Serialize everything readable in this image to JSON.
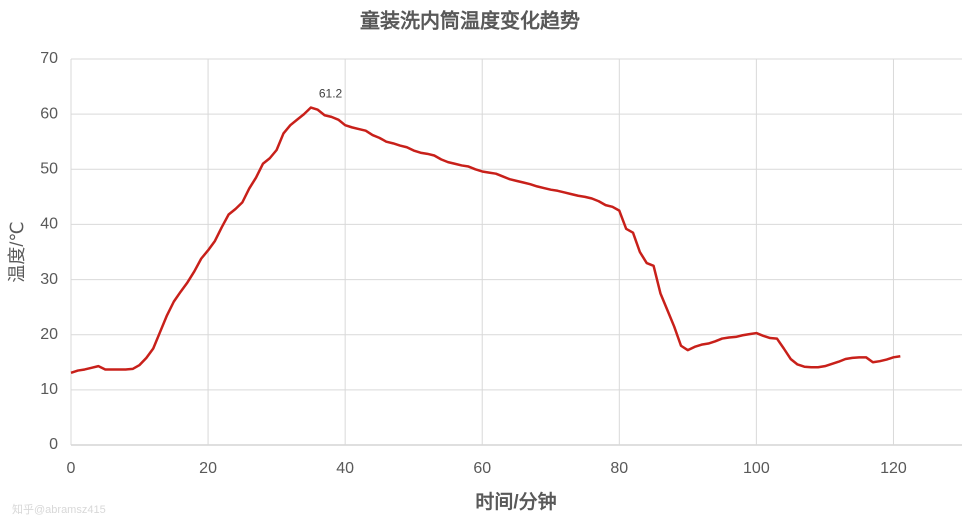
{
  "chart_data": {
    "type": "line",
    "title": "童装洗内筒温度变化趋势",
    "x_label": "时间/分钟",
    "y_label": "温度/℃",
    "watermark": "知乎@abramsz415",
    "x": [
      0,
      1,
      2,
      3,
      4,
      5,
      6,
      7,
      8,
      9,
      10,
      11,
      12,
      13,
      14,
      15,
      16,
      17,
      18,
      19,
      20,
      21,
      22,
      23,
      24,
      25,
      26,
      27,
      28,
      29,
      30,
      31,
      32,
      33,
      34,
      35,
      36,
      37,
      38,
      39,
      40,
      41,
      42,
      43,
      44,
      45,
      46,
      47,
      48,
      49,
      50,
      51,
      52,
      53,
      54,
      55,
      56,
      57,
      58,
      59,
      60,
      61,
      62,
      63,
      64,
      65,
      66,
      67,
      68,
      69,
      70,
      71,
      72,
      73,
      74,
      75,
      76,
      77,
      78,
      79,
      80,
      81,
      82,
      83,
      84,
      85,
      86,
      87,
      88,
      89,
      90,
      91,
      92,
      93,
      94,
      95,
      96,
      97,
      98,
      99,
      100,
      101,
      102,
      103,
      104,
      105,
      106,
      107,
      108,
      109,
      110,
      111,
      112,
      113,
      114,
      115,
      116,
      117,
      118,
      119,
      120,
      121
    ],
    "series": [
      {
        "color": "#c8201a",
        "values": [
          13.1,
          13.5,
          13.7,
          14.0,
          14.3,
          13.7,
          13.7,
          13.7,
          13.7,
          13.8,
          14.5,
          15.8,
          17.5,
          20.5,
          23.5,
          26.0,
          27.8,
          29.5,
          31.5,
          33.8,
          35.3,
          37.0,
          39.5,
          41.8,
          42.8,
          44.0,
          46.5,
          48.5,
          51.0,
          52.0,
          53.5,
          56.5,
          58.0,
          59.0,
          60.0,
          61.2,
          60.8,
          59.8,
          59.5,
          59.0,
          58.0,
          57.6,
          57.3,
          57.0,
          56.2,
          55.7,
          55.0,
          54.7,
          54.3,
          54.0,
          53.4,
          53.0,
          52.8,
          52.5,
          51.8,
          51.3,
          51.0,
          50.7,
          50.5,
          50.0,
          49.6,
          49.4,
          49.2,
          48.7,
          48.2,
          47.9,
          47.6,
          47.3,
          46.9,
          46.6,
          46.3,
          46.1,
          45.8,
          45.5,
          45.2,
          45.0,
          44.7,
          44.2,
          43.5,
          43.2,
          42.5,
          39.2,
          38.5,
          35.0,
          33.0,
          32.5,
          27.5,
          24.5,
          21.5,
          18.0,
          17.2,
          17.8,
          18.2,
          18.4,
          18.8,
          19.3,
          19.5,
          19.6,
          19.9,
          20.1,
          20.3,
          19.8,
          19.4,
          19.3,
          17.5,
          15.6,
          14.6,
          14.2,
          14.1,
          14.1,
          14.3,
          14.7,
          15.1,
          15.6,
          15.8,
          15.9,
          15.9,
          15.0,
          15.2,
          15.5,
          15.9,
          16.1
        ]
      }
    ],
    "xlim": [
      0,
      130
    ],
    "xticks": [
      0,
      20,
      40,
      60,
      80,
      100,
      120
    ],
    "ylim": [
      0,
      70
    ],
    "yticks": [
      0,
      10,
      20,
      30,
      40,
      50,
      60,
      70
    ],
    "grid": true
  }
}
